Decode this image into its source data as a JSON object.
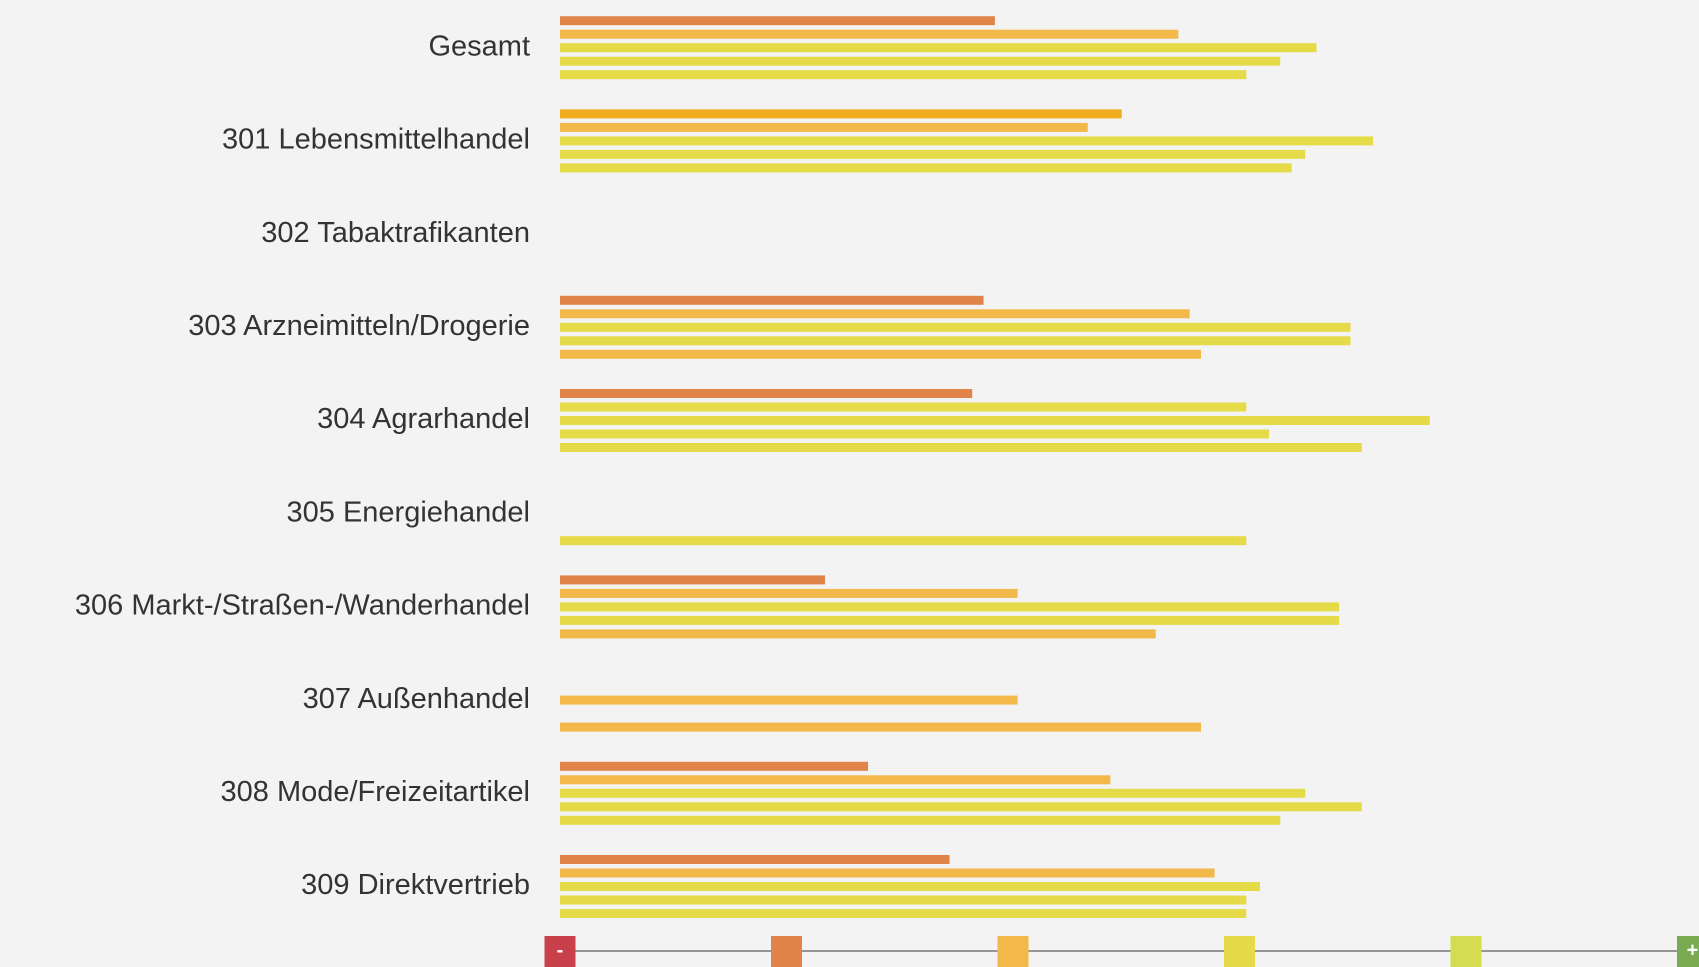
{
  "chart_data": {
    "type": "hbar_grouped",
    "categories": [
      "Gesamt",
      "301 Lebensmittelhandel",
      "302 Tabaktrafikanten",
      "303 Arzneimitteln/Drogerie",
      "304 Agrarhandel",
      "305 Energiehandel",
      "306 Markt-/Straßen-/Wanderhandel",
      "307 Außenhandel",
      "308 Mode/Freizeitartikel",
      "309 Direktvertrieb"
    ],
    "series": [
      {
        "values": [
          1.92,
          2.48,
          null,
          1.87,
          1.82,
          null,
          1.17,
          null,
          1.36,
          1.72
        ],
        "colors": [
          "#e0844a",
          "#f0ab1e",
          null,
          "#e0844a",
          "#e0844a",
          null,
          "#e0844a",
          null,
          "#e0844a",
          "#e0844a"
        ]
      },
      {
        "values": [
          2.73,
          2.33,
          null,
          2.78,
          3.03,
          null,
          2.02,
          null,
          2.43,
          2.89
        ],
        "colors": [
          "#f2b94a",
          "#f2b94a",
          null,
          "#f2b94a",
          "#e5da48",
          null,
          "#f2b94a",
          null,
          "#f2b94a",
          "#f2b94a"
        ]
      },
      {
        "values": [
          3.34,
          3.59,
          null,
          3.49,
          3.84,
          null,
          3.44,
          2.02,
          3.29,
          3.09
        ],
        "colors": [
          "#e5da48",
          "#e5da48",
          null,
          "#e5da48",
          "#e5da48",
          null,
          "#e5da48",
          "#f2b94a",
          "#e5da48",
          "#e5da48"
        ]
      },
      {
        "values": [
          3.18,
          3.29,
          null,
          3.49,
          3.13,
          null,
          3.44,
          null,
          3.54,
          3.03
        ],
        "colors": [
          "#e5da48",
          "#e5da48",
          null,
          "#e5da48",
          "#e5da48",
          null,
          "#e5da48",
          null,
          "#e5da48",
          "#e5da48"
        ]
      },
      {
        "values": [
          3.03,
          3.23,
          null,
          2.83,
          3.54,
          3.03,
          2.63,
          2.83,
          3.18,
          3.03
        ],
        "colors": [
          "#e5da48",
          "#e5da48",
          null,
          "#f2b94a",
          "#e5da48",
          "#e5da48",
          "#f2b94a",
          "#f2b94a",
          "#e5da48",
          "#e5da48"
        ]
      }
    ],
    "xlim": [
      0,
      5
    ],
    "scale": {
      "colors": [
        "#c9404a",
        "#e0844a",
        "#f2b94a",
        "#e5da48",
        "#d4dc50",
        "#7aab50"
      ],
      "low_label": "-",
      "high_label": "+"
    }
  }
}
